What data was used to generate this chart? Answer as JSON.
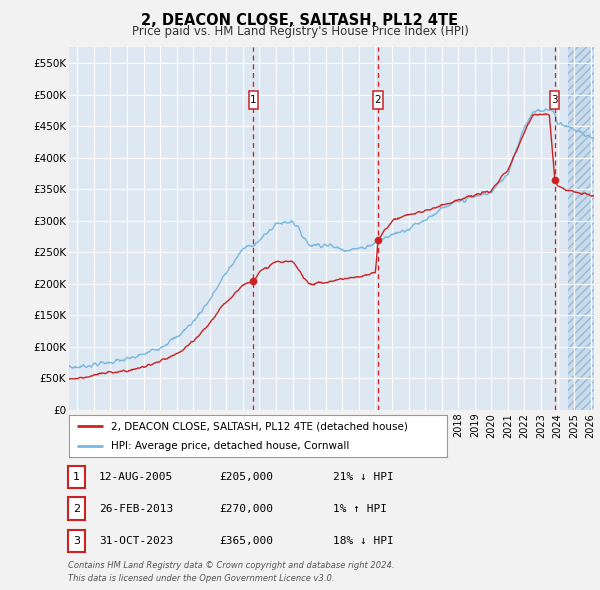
{
  "title": "2, DEACON CLOSE, SALTASH, PL12 4TE",
  "subtitle": "Price paid vs. HM Land Registry's House Price Index (HPI)",
  "ylim": [
    0,
    575000
  ],
  "ytick_values": [
    0,
    50000,
    100000,
    150000,
    200000,
    250000,
    300000,
    350000,
    400000,
    450000,
    500000,
    550000
  ],
  "ytick_labels": [
    "£0",
    "£50K",
    "£100K",
    "£150K",
    "£200K",
    "£250K",
    "£300K",
    "£350K",
    "£400K",
    "£450K",
    "£500K",
    "£550K"
  ],
  "xlim_start": 1994.5,
  "xlim_end": 2026.2,
  "hpi_color": "#7ab8e0",
  "price_color": "#cc2222",
  "background_color": "#f2f2f2",
  "plot_bg_color": "#dde8f2",
  "grid_color": "#ffffff",
  "sale_points": [
    {
      "year": 2005.62,
      "price": 205000,
      "label": "1"
    },
    {
      "year": 2013.16,
      "price": 270000,
      "label": "2"
    },
    {
      "year": 2023.84,
      "price": 365000,
      "label": "3"
    }
  ],
  "legend_label_red": "2, DEACON CLOSE, SALTASH, PL12 4TE (detached house)",
  "legend_label_blue": "HPI: Average price, detached house, Cornwall",
  "table_rows": [
    {
      "num": "1",
      "date": "12-AUG-2005",
      "price": "£205,000",
      "pct": "21% ↓ HPI"
    },
    {
      "num": "2",
      "date": "26-FEB-2013",
      "price": "£270,000",
      "pct": "1% ↑ HPI"
    },
    {
      "num": "3",
      "date": "31-OCT-2023",
      "price": "£365,000",
      "pct": "18% ↓ HPI"
    }
  ],
  "footnote1": "Contains HM Land Registry data © Crown copyright and database right 2024.",
  "footnote2": "This data is licensed under the Open Government Licence v3.0.",
  "future_start": 2024.62,
  "hpi_key_years": [
    1994.5,
    1995,
    1996,
    1997,
    1998,
    1999,
    2000,
    2001,
    2002,
    2003,
    2004,
    2005,
    2006,
    2007,
    2008,
    2009,
    2010,
    2011,
    2012,
    2013,
    2014,
    2015,
    2016,
    2017,
    2018,
    2019,
    2020,
    2021,
    2022,
    2022.5,
    2023,
    2023.5,
    2023.84,
    2024,
    2024.5,
    2025,
    2026.2
  ],
  "hpi_key_vals": [
    68000,
    68000,
    72000,
    76000,
    80000,
    88000,
    100000,
    115000,
    140000,
    175000,
    218000,
    255000,
    268000,
    295000,
    300000,
    262000,
    262000,
    255000,
    255000,
    265000,
    278000,
    288000,
    302000,
    318000,
    330000,
    338000,
    345000,
    375000,
    450000,
    470000,
    475000,
    478000,
    470000,
    455000,
    450000,
    445000,
    430000
  ],
  "price_key_years": [
    1994.5,
    1995,
    1996,
    1997,
    1998,
    1999,
    2000,
    2001,
    2002,
    2003,
    2004,
    2005,
    2005.62,
    2006,
    2007,
    2008,
    2009,
    2010,
    2011,
    2012,
    2013,
    2013.16,
    2014,
    2015,
    2016,
    2017,
    2018,
    2019,
    2020,
    2021,
    2022,
    2022.5,
    2023,
    2023.5,
    2023.84,
    2024,
    2024.5,
    2025,
    2026.2
  ],
  "price_key_vals": [
    50000,
    50000,
    55000,
    60000,
    62000,
    68000,
    77000,
    88000,
    108000,
    138000,
    172000,
    198000,
    205000,
    218000,
    235000,
    235000,
    200000,
    202000,
    208000,
    210000,
    218000,
    270000,
    300000,
    310000,
    315000,
    325000,
    333000,
    340000,
    348000,
    380000,
    440000,
    468000,
    470000,
    468000,
    365000,
    355000,
    350000,
    345000,
    340000
  ]
}
